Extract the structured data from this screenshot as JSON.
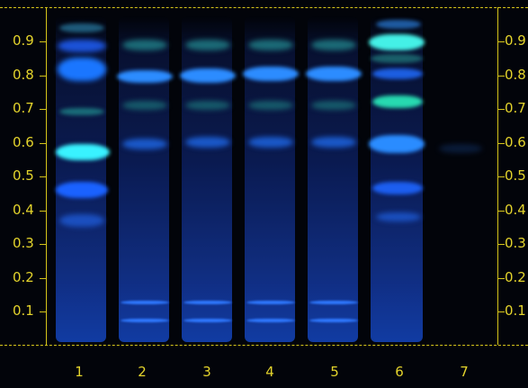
{
  "rf_axis": {
    "ticks": [
      "0.9",
      "0.8",
      "0.7",
      "0.6",
      "0.5",
      "0.4",
      "0.3",
      "0.2",
      "0.1"
    ]
  },
  "lanes": {
    "labels": [
      "1",
      "2",
      "3",
      "4",
      "5",
      "6",
      "7"
    ]
  },
  "colors": {
    "frame": "#d6c51a",
    "label": "#e4d42c",
    "background": "#02040a",
    "band_blue": "#1a6cff",
    "band_cyan": "#2ff0ff",
    "band_teal": "#1fb4a6"
  }
}
